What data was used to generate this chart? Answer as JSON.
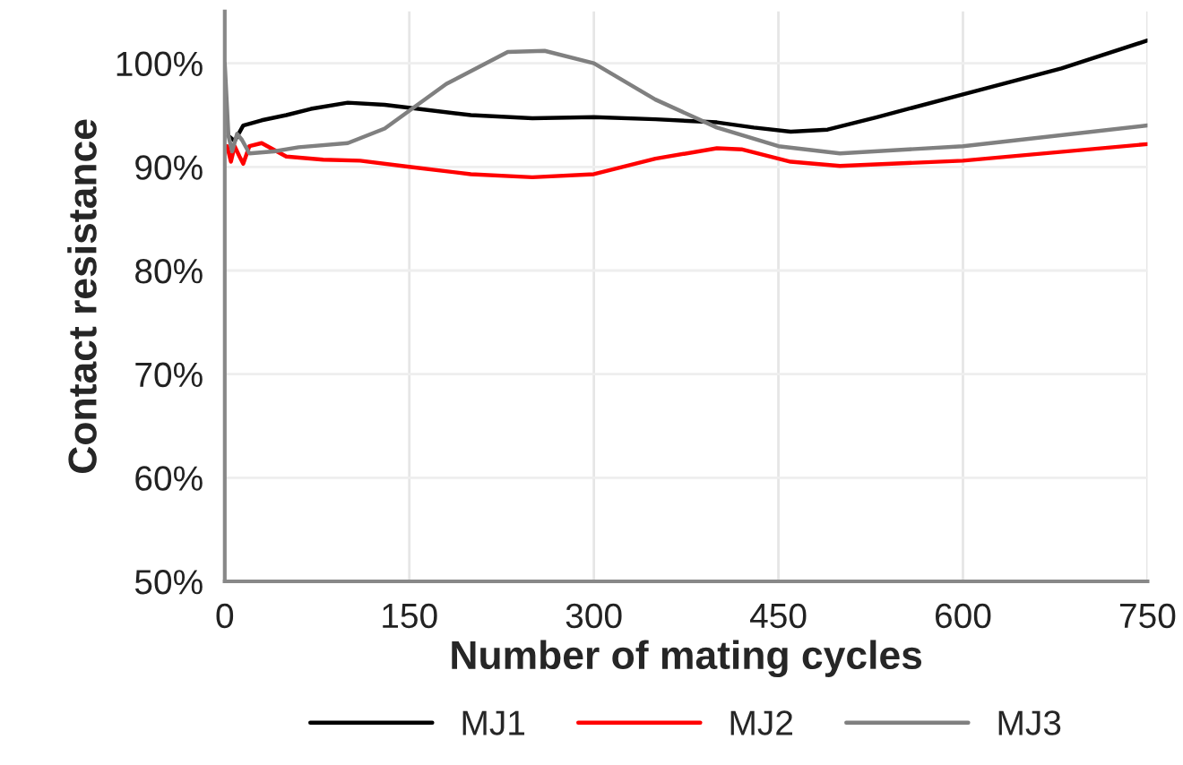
{
  "chart_data": {
    "type": "line",
    "xlabel": "Number of mating cycles",
    "ylabel": "Contact resistance",
    "xlim": [
      0,
      750
    ],
    "xticks": [
      0,
      150,
      300,
      450,
      600,
      750
    ],
    "ylim": [
      50,
      105
    ],
    "yticks": [
      {
        "value": 50,
        "label": "50%"
      },
      {
        "value": 60,
        "label": "60%"
      },
      {
        "value": 70,
        "label": "70%"
      },
      {
        "value": 80,
        "label": "80%"
      },
      {
        "value": 90,
        "label": "90%"
      },
      {
        "value": 100,
        "label": "100%"
      }
    ],
    "grid": true,
    "legend": "bottom",
    "line_style": "solid",
    "marker": "none",
    "series": [
      {
        "name": "MJ1",
        "color": "#000000",
        "x": [
          3,
          8,
          15,
          30,
          50,
          70,
          100,
          130,
          200,
          250,
          300,
          350,
          400,
          430,
          460,
          490,
          530,
          600,
          680,
          750
        ],
        "values": [
          93,
          92.5,
          94,
          94.5,
          95,
          95.6,
          96.2,
          96,
          95,
          94.7,
          94.8,
          94.6,
          94.3,
          93.8,
          93.4,
          93.6,
          94.8,
          97,
          99.5,
          102.2
        ]
      },
      {
        "name": "MJ2",
        "color": "#ff0000",
        "x": [
          2,
          5,
          8,
          12,
          15,
          20,
          30,
          50,
          80,
          110,
          150,
          200,
          250,
          300,
          350,
          400,
          420,
          460,
          500,
          600,
          750
        ],
        "values": [
          92,
          90.5,
          92,
          91,
          90.3,
          92,
          92.3,
          91,
          90.7,
          90.6,
          90,
          89.3,
          89,
          89.3,
          90.8,
          91.8,
          91.7,
          90.5,
          90.1,
          90.6,
          92.2
        ]
      },
      {
        "name": "MJ3",
        "color": "#808080",
        "x": [
          0,
          3,
          6,
          10,
          14,
          20,
          40,
          60,
          100,
          130,
          180,
          230,
          260,
          300,
          350,
          400,
          450,
          500,
          600,
          750
        ],
        "values": [
          100,
          93,
          91.5,
          93.2,
          92.6,
          91.3,
          91.5,
          91.9,
          92.3,
          93.7,
          98,
          101.1,
          101.2,
          100,
          96.5,
          93.8,
          92,
          91.3,
          92,
          94
        ]
      }
    ]
  }
}
